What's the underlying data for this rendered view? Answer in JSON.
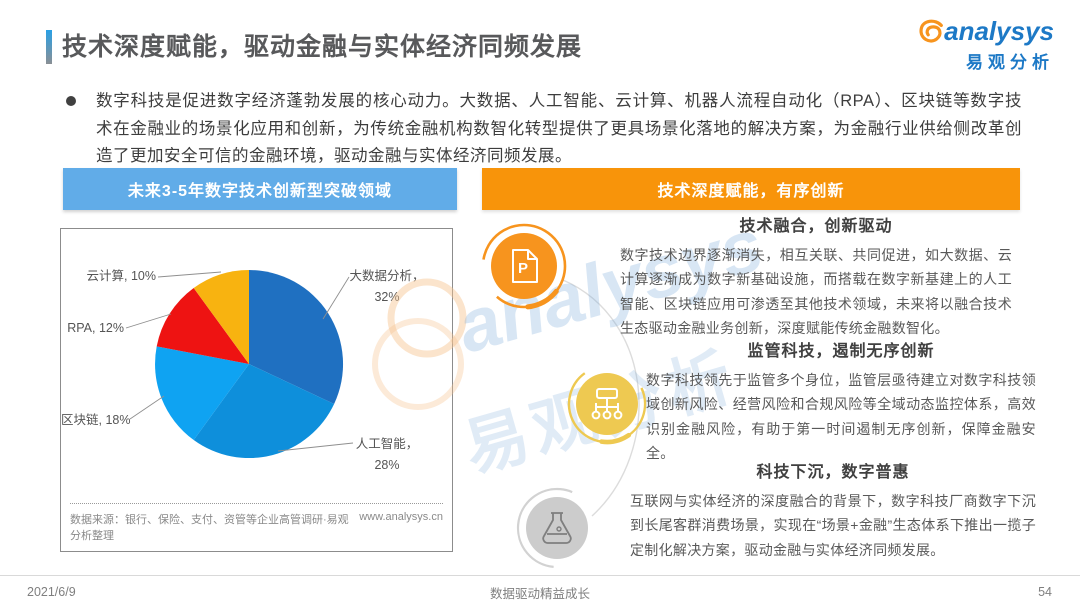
{
  "slide": {
    "title": "技术深度赋能，驱动金融与实体经济同频发展",
    "footer_date": "2021/6/9",
    "footer_motto": "数据驱动精益成长",
    "footer_page": "54"
  },
  "logo": {
    "name": "analysys",
    "cn": "易观分析"
  },
  "intro": {
    "text": "数字科技是促进数字经济蓬勃发展的核心动力。大数据、人工智能、云计算、机器人流程自动化（RPA）、区块链等数字技术在金融业的场景化应用和创新，为传统金融机构数智化转型提供了更具场景化落地的解决方案，为金融行业供给侧改革创造了更加安全可信的金融环境，驱动金融与实体经济同频发展。"
  },
  "left_panel": {
    "header": "未来3-5年数字技术创新型突破领域",
    "source": "数据来源：银行、保险、支付、资管等企业高管调研·易观分析整理",
    "website": "www.analysys.cn"
  },
  "chart_data": {
    "type": "pie",
    "title": "未来3-5年数字技术创新型突破领域",
    "labels": [
      "大数据分析",
      "人工智能",
      "区块链",
      "RPA",
      "云计算"
    ],
    "values": [
      32,
      28,
      18,
      12,
      10
    ],
    "unit": "%",
    "colors": [
      "#1f70c1",
      "#0e8fdb",
      "#0fa3f2",
      "#ee1312",
      "#f8b310"
    ],
    "start_angle_deg": 0,
    "direction": "clockwise",
    "legend_position": "callout-labels"
  },
  "right_panel": {
    "header": "技术深度赋能，有序创新",
    "sections": [
      {
        "icon": "document-p-icon",
        "title": "技术融合，创新驱动",
        "body": "数字技术边界逐渐消失，相互关联、共同促进，如大数据、云计算逐渐成为数字新基础设施，而搭载在数字新基建上的人工智能、区块链应用可渗透至其他技术领域，未来将以融合技术生态驱动金融业务创新，深度赋能传统金融数智化。"
      },
      {
        "icon": "network-icon",
        "title": "监管科技，遏制无序创新",
        "body": "数字科技领先于监管多个身位，监管层亟待建立对数字科技领域创新风险、经营风险和合规风险等全域动态监控体系，高效识别金融风险，有助于第一时间遏制无序创新，保障金融安全。"
      },
      {
        "icon": "flask-icon",
        "title": "科技下沉，数字普惠",
        "body": "互联网与实体经济的深度融合的背景下，数字科技厂商数字下沉到长尾客群消费场景，实现在“场景+金融”生态体系下推出一揽子定制化解决方案，驱动金融与实体经济同频发展。"
      }
    ]
  },
  "colors": {
    "header_blue": "#61ace8",
    "header_orange": "#f8940a",
    "icon_orange": "#f7941e",
    "icon_gold": "#eec951",
    "icon_gray": "#cccccc",
    "accent_blue": "#29a0e5"
  }
}
